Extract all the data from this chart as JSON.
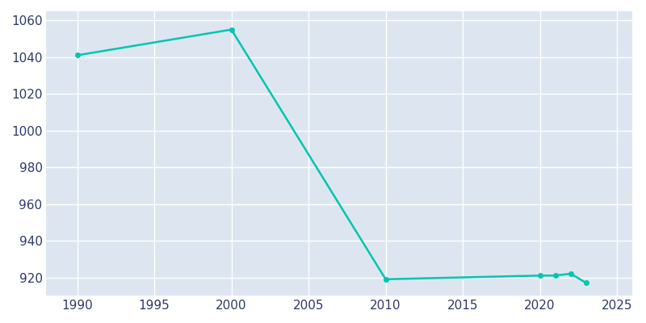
{
  "years": [
    1990,
    2000,
    2010,
    2020,
    2021,
    2022,
    2023
  ],
  "population": [
    1041,
    1055,
    919,
    921,
    921,
    922,
    917
  ],
  "line_color": "#00C5B0",
  "marker": "o",
  "marker_size": 4,
  "line_width": 1.8,
  "plot_bg_color": "#DDE6F0",
  "fig_bg_color": "#FFFFFF",
  "grid_color": "#FFFFFF",
  "text_color": "#2D3A6A",
  "xlim": [
    1988,
    2026
  ],
  "ylim": [
    910,
    1065
  ],
  "xticks": [
    1990,
    1995,
    2000,
    2005,
    2010,
    2015,
    2020,
    2025
  ],
  "yticks": [
    920,
    940,
    960,
    980,
    1000,
    1020,
    1040,
    1060
  ]
}
